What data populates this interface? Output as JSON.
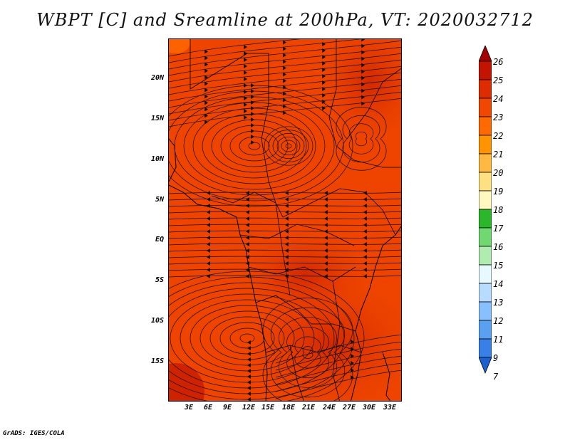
{
  "title": "WBPT [C] and Sreamline at 200hPa, VT: 2020032712",
  "credit": "GrADS: IGES/COLA",
  "y_ticks": [
    "20N",
    "15N",
    "10N",
    "5N",
    "EQ",
    "5S",
    "10S",
    "15S"
  ],
  "x_ticks": [
    "3E",
    "6E",
    "9E",
    "12E",
    "15E",
    "18E",
    "21E",
    "24E",
    "27E",
    "30E",
    "33E"
  ],
  "colorbar": {
    "labels": [
      "26",
      "25",
      "24",
      "23",
      "22",
      "21",
      "20",
      "19",
      "18",
      "17",
      "16",
      "15",
      "14",
      "13",
      "12",
      "11",
      "9",
      "7"
    ],
    "colors": [
      "#a50000",
      "#c21400",
      "#dd2c00",
      "#f04800",
      "#ff6a00",
      "#ff9400",
      "#ffb840",
      "#ffe080",
      "#fff8c0",
      "#2ab82a",
      "#70d870",
      "#b0ecb0",
      "#e8f8ff",
      "#b8dcff",
      "#88c0ff",
      "#5aa0f0",
      "#3880e8",
      "#1e60d0"
    ]
  }
}
